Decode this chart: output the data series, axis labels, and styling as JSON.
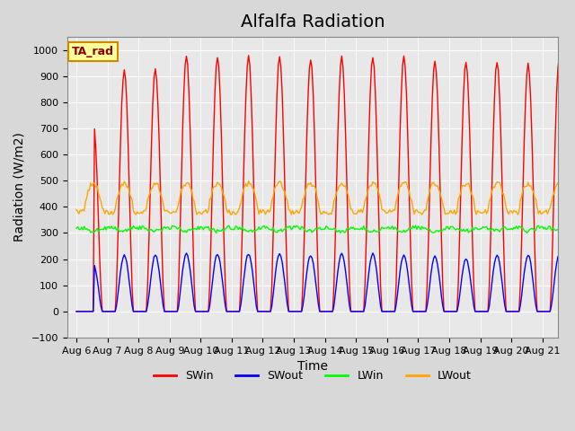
{
  "title": "Alfalfa Radiation",
  "ylabel": "Radiation (W/m2)",
  "xlabel": "Time",
  "ylim": [
    -100,
    1050
  ],
  "series_colors": {
    "SWin": "#FF0000",
    "SWout": "#0000FF",
    "LWin": "#00FF00",
    "LWout": "#FFA500"
  },
  "legend_label": "TA_rad",
  "legend_box_color": "#FFFF99",
  "legend_box_edge": "#CC8800",
  "title_fontsize": 14,
  "axis_label_fontsize": 10,
  "tick_fontsize": 8,
  "SWin_peaks": [
    730,
    920,
    925,
    975,
    975,
    975,
    975,
    965,
    975,
    975,
    975,
    960,
    955,
    955,
    945,
    970
  ],
  "SWout_peaks": [
    180,
    215,
    215,
    220,
    220,
    220,
    220,
    215,
    220,
    220,
    215,
    210,
    200,
    215,
    215,
    215
  ],
  "LWin_base": 320,
  "LWin_amp": 25,
  "LWout_base": 390,
  "LWout_amp": 100,
  "total_days": 16,
  "x_tick_labels": [
    "Aug 6",
    "Aug 7",
    "Aug 8",
    "Aug 9",
    "Aug 10",
    "Aug 11",
    "Aug 12",
    "Aug 13",
    "Aug 14",
    "Aug 15",
    "Aug 16",
    "Aug 17",
    "Aug 18",
    "Aug 19",
    "Aug 20",
    "Aug 21"
  ]
}
